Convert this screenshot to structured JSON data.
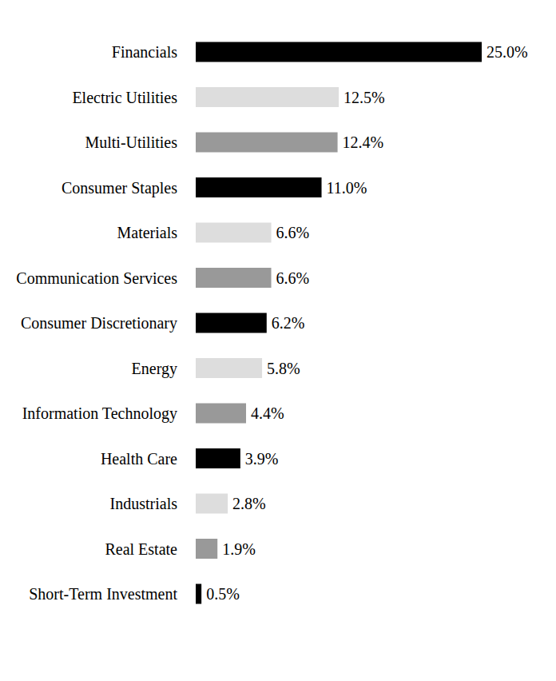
{
  "chart_data": {
    "type": "bar",
    "orientation": "horizontal",
    "categories": [
      "Financials",
      "Electric Utilities",
      "Multi-Utilities",
      "Consumer Staples",
      "Materials",
      "Communication Services",
      "Consumer Discretionary",
      "Energy",
      "Information Technology",
      "Health Care",
      "Industrials",
      "Real Estate",
      "Short-Term Investment"
    ],
    "values": [
      25.0,
      12.5,
      12.4,
      11.0,
      6.6,
      6.6,
      6.2,
      5.8,
      4.4,
      3.9,
      2.8,
      1.9,
      0.5
    ],
    "value_labels": [
      "25.0%",
      "12.5%",
      "12.4%",
      "11.0%",
      "6.6%",
      "6.6%",
      "6.2%",
      "5.8%",
      "4.4%",
      "3.9%",
      "2.8%",
      "1.9%",
      "0.5%"
    ],
    "colors": [
      "#000000",
      "#dddddd",
      "#999999",
      "#000000",
      "#dddddd",
      "#999999",
      "#000000",
      "#dddddd",
      "#999999",
      "#000000",
      "#dddddd",
      "#999999",
      "#000000"
    ],
    "data_labels": true,
    "tick_labels": "y",
    "grid": false
  }
}
